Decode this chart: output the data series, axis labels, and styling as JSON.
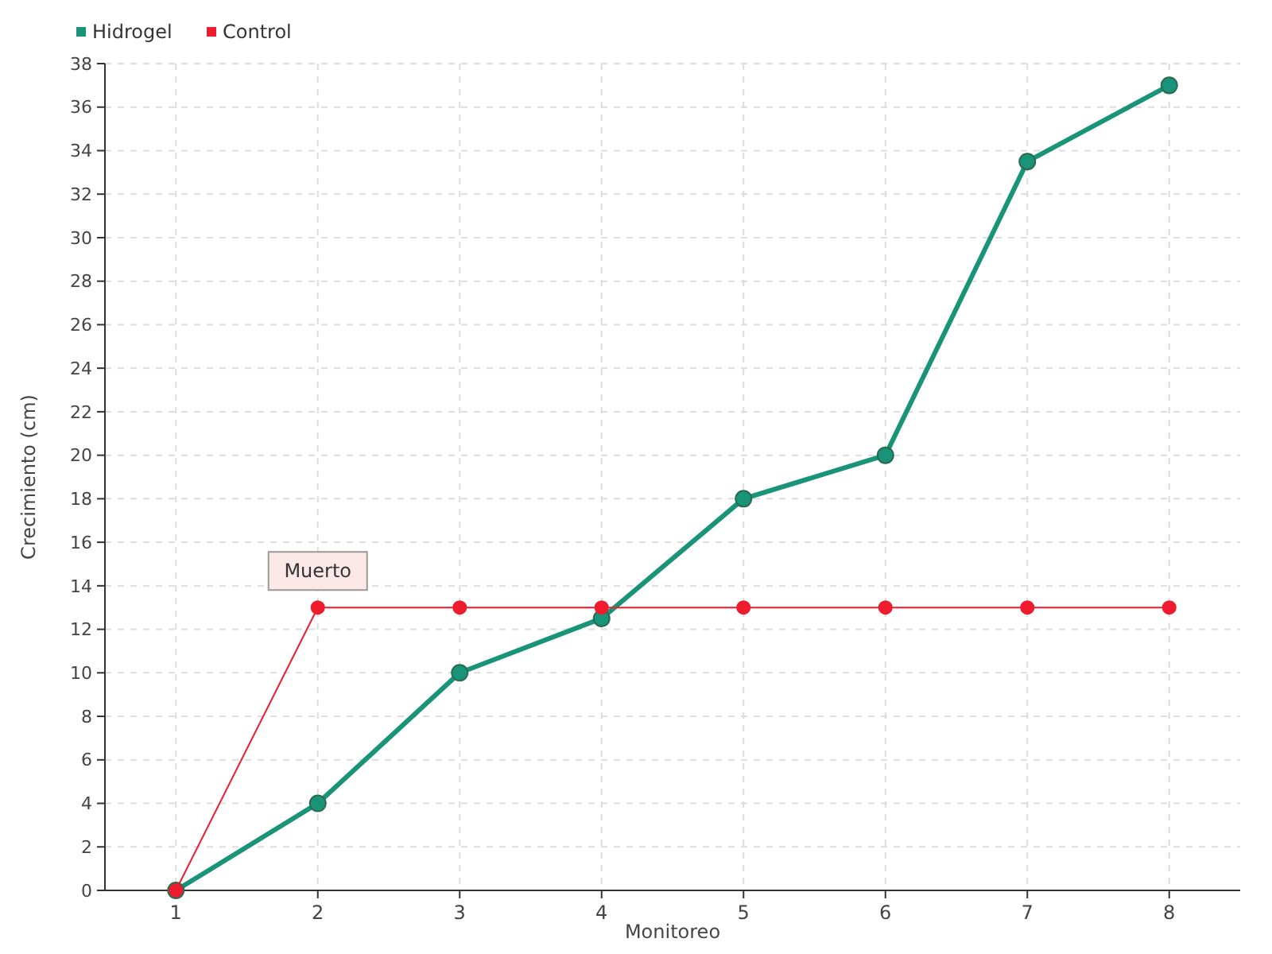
{
  "chart_data": {
    "type": "line",
    "xlabel": "Monitoreo",
    "ylabel": "Crecimiento (cm)",
    "x": [
      1,
      2,
      3,
      4,
      5,
      6,
      7,
      8
    ],
    "xlim": [
      0.5,
      8.5
    ],
    "xticks": [
      1,
      2,
      3,
      4,
      5,
      6,
      7,
      8
    ],
    "ylim": [
      0,
      38
    ],
    "yticks": [
      0,
      2,
      4,
      6,
      8,
      10,
      12,
      14,
      16,
      18,
      20,
      22,
      24,
      26,
      28,
      30,
      32,
      34,
      36,
      38
    ],
    "series": [
      {
        "name": "Hidrogel",
        "color": "#1a9478",
        "values": [
          0,
          4,
          10,
          12.5,
          18,
          20,
          33.5,
          37
        ]
      },
      {
        "name": "Control",
        "color": "#ee1c2e",
        "values": [
          0,
          13,
          13,
          13,
          13,
          13,
          13,
          13
        ]
      }
    ],
    "annotations": [
      {
        "text": "Muerto",
        "x": 2,
        "y": 13
      }
    ],
    "grid": true,
    "legend": "top left",
    "marker": "circle",
    "line_style": "solid"
  }
}
